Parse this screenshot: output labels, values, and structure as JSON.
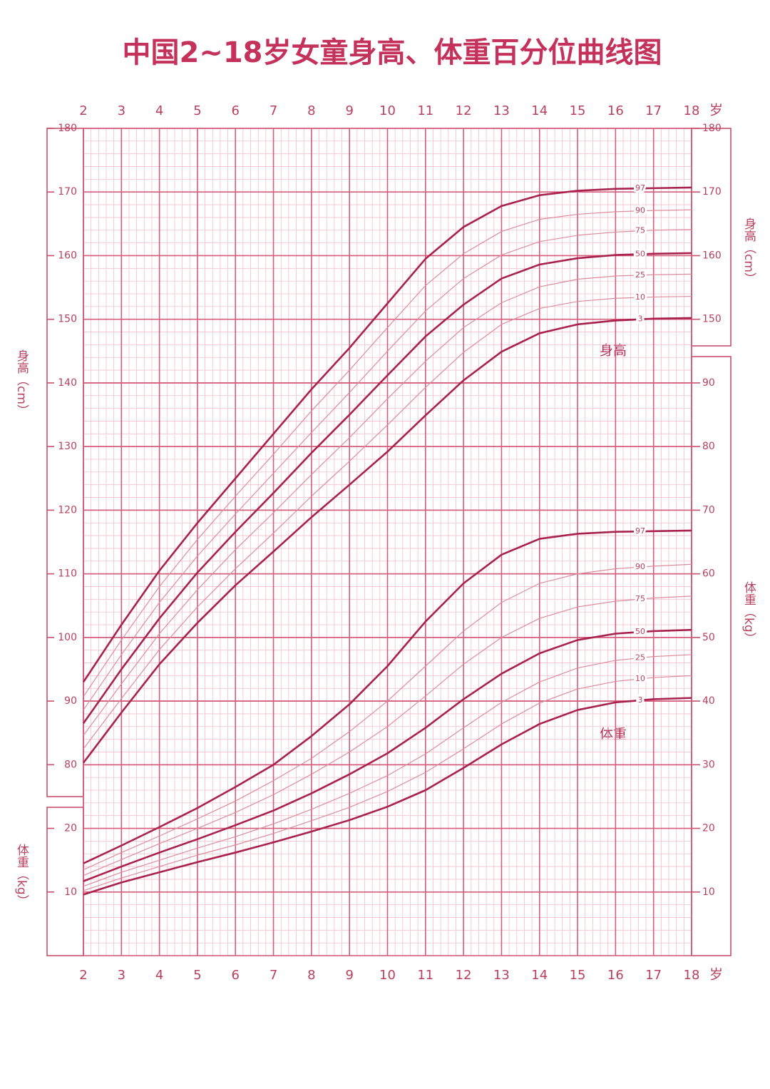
{
  "chart_data": {
    "type": "line",
    "title": "中国2~18岁女童身高、体重百分位曲线图",
    "x_unit": "岁",
    "x": [
      2,
      3,
      4,
      5,
      6,
      7,
      8,
      9,
      10,
      11,
      12,
      13,
      14,
      15,
      16,
      17,
      18
    ],
    "xlim": [
      2,
      18
    ],
    "xticks": [
      2,
      3,
      4,
      5,
      6,
      7,
      8,
      9,
      10,
      11,
      12,
      13,
      14,
      15,
      16,
      17,
      18
    ],
    "ylim": [
      50,
      180
    ],
    "yticks": [
      80,
      90,
      100,
      110,
      120,
      130,
      140,
      150,
      160,
      170,
      180
    ],
    "yticks_right": [
      150,
      160,
      170,
      180
    ],
    "y2lim": [
      0,
      130
    ],
    "y2ticks": [
      10,
      20,
      30,
      40,
      50,
      60,
      70,
      80,
      90
    ],
    "y2ticks_left": [
      10,
      20
    ],
    "y_label": "身高（cm）",
    "y2_label": "体重（kg）",
    "height_label": "身高",
    "weight_label": "体重",
    "grid": true,
    "series": [
      {
        "name": "97",
        "color": "#a8224d",
        "line_width": 2.6,
        "values": [
          93.0,
          102.0,
          110.5,
          118.0,
          125.0,
          132.0,
          139.0,
          145.5,
          152.5,
          159.5,
          164.5,
          167.8,
          169.5,
          170.2,
          170.5,
          170.6,
          170.7
        ]
      },
      {
        "name": "90",
        "color": "#dc8c9e",
        "line_width": 1.2,
        "values": [
          90.7,
          99.6,
          108.0,
          115.4,
          122.2,
          128.8,
          135.6,
          142.0,
          148.7,
          155.3,
          160.3,
          163.8,
          165.7,
          166.5,
          166.9,
          167.1,
          167.2
        ]
      },
      {
        "name": "75",
        "color": "#dc8c9e",
        "line_width": 1.2,
        "values": [
          88.6,
          97.3,
          105.5,
          112.8,
          119.4,
          125.8,
          132.2,
          138.5,
          145.0,
          151.3,
          156.4,
          160.1,
          162.2,
          163.2,
          163.7,
          164.0,
          164.1
        ]
      },
      {
        "name": "50",
        "color": "#a8224d",
        "line_width": 2.6,
        "values": [
          86.5,
          95.0,
          103.0,
          110.2,
          116.6,
          122.7,
          129.0,
          135.0,
          141.2,
          147.3,
          152.3,
          156.4,
          158.6,
          159.6,
          160.1,
          160.3,
          160.4
        ]
      },
      {
        "name": "25",
        "color": "#dc8c9e",
        "line_width": 1.2,
        "values": [
          84.6,
          92.7,
          100.6,
          107.5,
          113.8,
          119.6,
          125.6,
          131.4,
          137.5,
          143.4,
          148.7,
          152.6,
          155.1,
          156.3,
          156.8,
          157.0,
          157.1
        ]
      },
      {
        "name": "10",
        "color": "#dc8c9e",
        "line_width": 1.2,
        "values": [
          82.5,
          90.4,
          98.1,
          104.8,
          110.8,
          116.4,
          122.2,
          127.7,
          133.4,
          139.3,
          144.8,
          149.2,
          151.7,
          152.8,
          153.3,
          153.5,
          153.6
        ]
      },
      {
        "name": "3",
        "color": "#a8224d",
        "line_width": 2.6,
        "values": [
          80.3,
          88.2,
          95.8,
          102.3,
          108.2,
          113.5,
          118.9,
          124.0,
          129.2,
          134.9,
          140.4,
          144.9,
          147.8,
          149.2,
          149.8,
          150.1,
          150.2
        ]
      },
      {
        "name": "97",
        "axis": "y2",
        "color": "#a8224d",
        "line_width": 2.6,
        "values": [
          14.5,
          17.3,
          20.2,
          23.2,
          26.5,
          30.0,
          34.5,
          39.5,
          45.5,
          52.5,
          58.5,
          63.0,
          65.5,
          66.3,
          66.6,
          66.7,
          66.8
        ]
      },
      {
        "name": "90",
        "axis": "y2",
        "color": "#dc8c9e",
        "line_width": 1.2,
        "values": [
          13.5,
          16.2,
          18.8,
          21.5,
          24.3,
          27.5,
          31.0,
          35.2,
          40.0,
          45.5,
          51.0,
          55.5,
          58.5,
          60.0,
          60.8,
          61.2,
          61.5
        ]
      },
      {
        "name": "75",
        "axis": "y2",
        "color": "#dc8c9e",
        "line_width": 1.2,
        "values": [
          12.6,
          15.1,
          17.6,
          20.0,
          22.5,
          25.3,
          28.5,
          32.0,
          36.0,
          40.8,
          45.8,
          50.0,
          53.0,
          54.8,
          55.7,
          56.2,
          56.5
        ]
      },
      {
        "name": "50",
        "axis": "y2",
        "color": "#a8224d",
        "line_width": 2.6,
        "values": [
          11.7,
          14.0,
          16.2,
          18.3,
          20.5,
          22.8,
          25.5,
          28.5,
          31.8,
          35.8,
          40.3,
          44.3,
          47.5,
          49.6,
          50.6,
          51.0,
          51.2
        ]
      },
      {
        "name": "25",
        "axis": "y2",
        "color": "#dc8c9e",
        "line_width": 1.2,
        "values": [
          10.9,
          13.1,
          15.0,
          16.9,
          18.7,
          20.7,
          23.0,
          25.5,
          28.3,
          31.7,
          35.8,
          39.8,
          43.0,
          45.2,
          46.4,
          47.0,
          47.3
        ]
      },
      {
        "name": "10",
        "axis": "y2",
        "color": "#dc8c9e",
        "line_width": 1.2,
        "values": [
          10.2,
          12.2,
          14.0,
          15.8,
          17.4,
          19.2,
          21.2,
          23.3,
          25.8,
          28.8,
          32.5,
          36.4,
          39.7,
          41.9,
          43.1,
          43.7,
          44.0
        ]
      },
      {
        "name": "3",
        "axis": "y2",
        "color": "#a8224d",
        "line_width": 2.6,
        "values": [
          9.6,
          11.5,
          13.1,
          14.7,
          16.2,
          17.8,
          19.5,
          21.3,
          23.4,
          26.0,
          29.5,
          33.2,
          36.4,
          38.6,
          39.8,
          40.3,
          40.5
        ]
      }
    ]
  }
}
